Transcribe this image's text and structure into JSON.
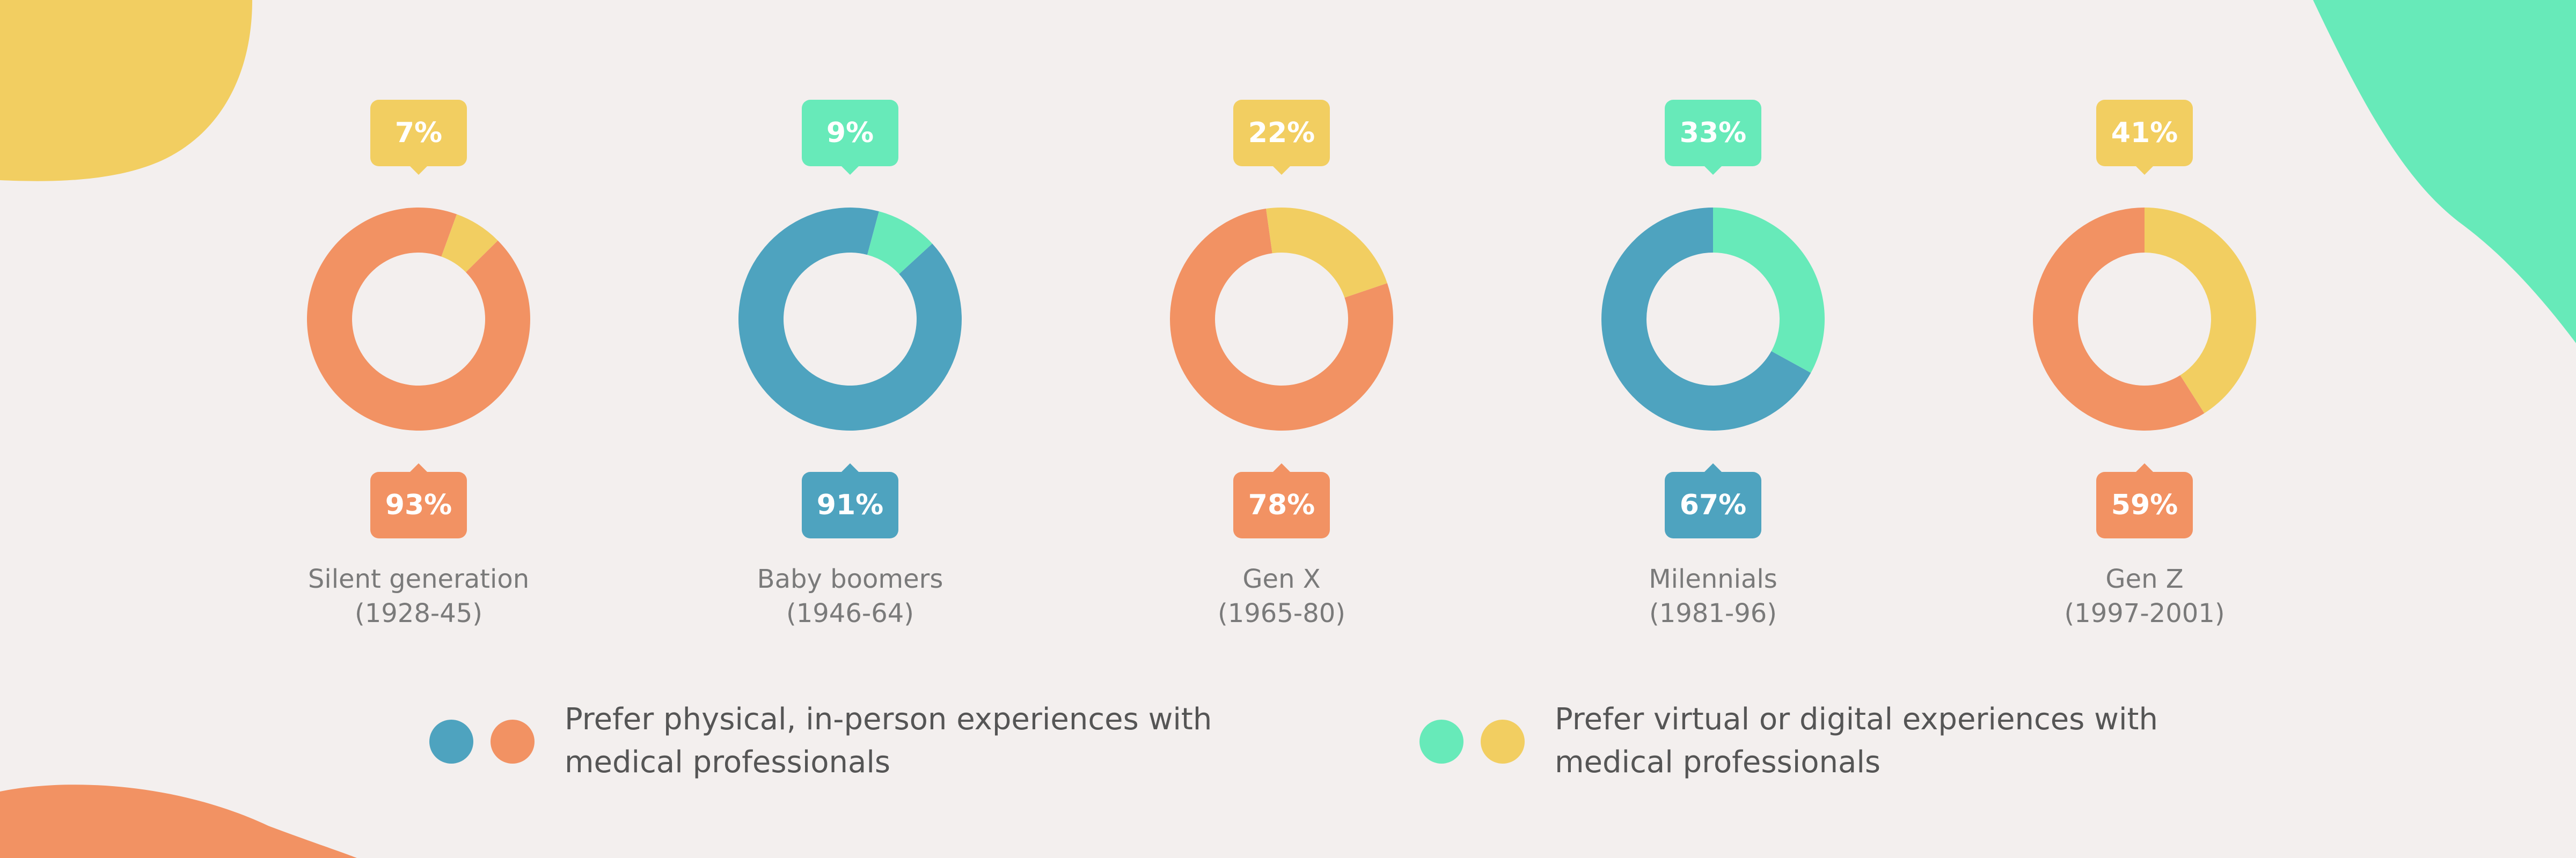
{
  "colors": {
    "background": "#F3EFEE",
    "orange": "#F29263",
    "blue": "#4EA3BF",
    "green": "#67EAB9",
    "yellow": "#F2CE61"
  },
  "chart_data": {
    "type": "pie",
    "style": "donut",
    "generations": [
      {
        "name": "Silent generation",
        "years": "(1928-45)",
        "physical": 93,
        "digital": 7,
        "physical_label": "93%",
        "digital_label": "7%",
        "physical_color": "#F29263",
        "digital_color": "#F2CE61"
      },
      {
        "name": "Baby boomers",
        "years": "(1946-64)",
        "physical": 91,
        "digital": 9,
        "physical_label": "91%",
        "digital_label": "9%",
        "physical_color": "#4EA3BF",
        "digital_color": "#67EAB9"
      },
      {
        "name": "Gen X",
        "years": "(1965-80)",
        "physical": 78,
        "digital": 22,
        "physical_label": "78%",
        "digital_label": "22%",
        "physical_color": "#F29263",
        "digital_color": "#F2CE61"
      },
      {
        "name": "Milennials",
        "years": "(1981-96)",
        "physical": 67,
        "digital": 33,
        "physical_label": "67%",
        "digital_label": "33%",
        "physical_color": "#4EA3BF",
        "digital_color": "#67EAB9"
      },
      {
        "name": "Gen Z",
        "years": "(1997-2001)",
        "physical": 59,
        "digital": 41,
        "physical_label": "59%",
        "digital_label": "41%",
        "physical_color": "#F29263",
        "digital_color": "#F2CE61"
      }
    ],
    "legend": [
      {
        "text": "Prefer physical, in-person experiences with medical professionals",
        "colors": [
          "#4EA3BF",
          "#F29263"
        ]
      },
      {
        "text": "Prefer virtual or digital experiences with medical professionals",
        "colors": [
          "#67EAB9",
          "#F2CE61"
        ]
      }
    ]
  }
}
